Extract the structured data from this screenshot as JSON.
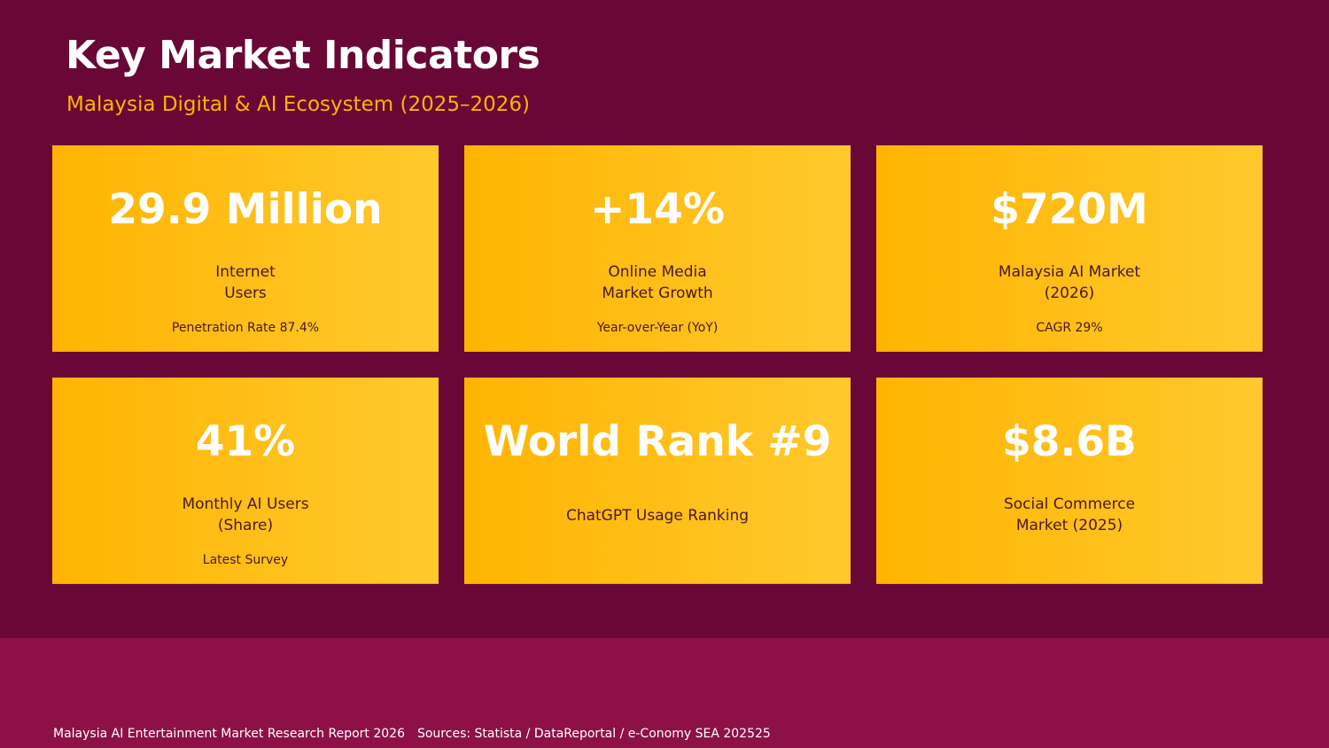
{
  "header": {
    "title": "Key Market Indicators",
    "subtitle": "Malaysia Digital & AI Ecosystem (2025–2026)"
  },
  "cards": [
    {
      "value": "29.9 Million",
      "label_lines": [
        "Internet",
        "Users"
      ],
      "note": "Penetration Rate 87.4%"
    },
    {
      "value": "+14%",
      "label_lines": [
        "Online Media",
        "Market Growth"
      ],
      "note": "Year-over-Year (YoY)"
    },
    {
      "value": "$720M",
      "label_lines": [
        "Malaysia AI Market",
        "(2026)"
      ],
      "note": "CAGR 29%"
    },
    {
      "value": "41%",
      "label_lines": [
        "Monthly AI Users",
        "(Share)"
      ],
      "note": "Latest Survey"
    },
    {
      "value": "World Rank #9",
      "label_lines": [
        "ChatGPT Usage Ranking"
      ],
      "note": ""
    },
    {
      "value": "$8.6B",
      "label_lines": [
        "Social Commerce",
        "Market (2025)"
      ],
      "note": ""
    }
  ],
  "footer": {
    "report": "Malaysia AI Entertainment Market Research Report 2026",
    "sources": "Sources: Statista / DataReportal / e-Conomy SEA 202525"
  },
  "colors": {
    "background": "#690736",
    "footer_band": "#8d1146",
    "accent": "#ffb400",
    "card_gradient_start": "#ffb401",
    "card_gradient_end": "#ffc92d"
  }
}
